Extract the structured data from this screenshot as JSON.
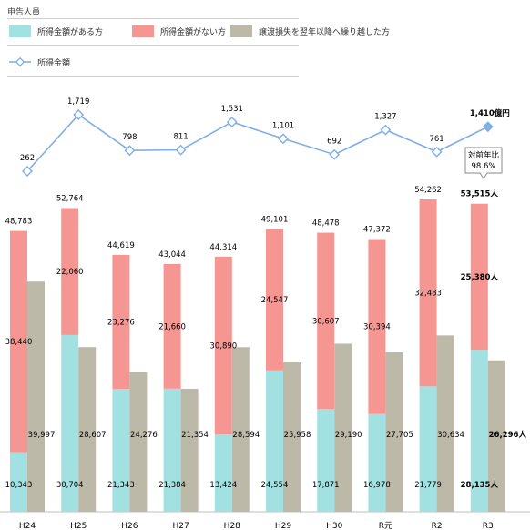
{
  "legend_header": "申告人員",
  "legend": {
    "items": [
      {
        "label": "所得金額がある方",
        "color": "#a2e1e1"
      },
      {
        "label": "所得金額がない方",
        "color": "#f59693"
      },
      {
        "label": "譲渡損失を翌年以降へ繰り越した方",
        "color": "#bdb9a9"
      }
    ],
    "line_label": "所得金額",
    "line_color": "#7faee6"
  },
  "callout": {
    "line1": "対前年比",
    "line2": "98.6%"
  },
  "chart_data": {
    "type": "bar",
    "categories": [
      "H24",
      "H25",
      "H26",
      "H27",
      "H28",
      "H29",
      "H30",
      "R元",
      "R2",
      "R3"
    ],
    "stacked_series": [
      {
        "name": "所得金額がある方",
        "values": [
          10343,
          30704,
          21343,
          21384,
          13424,
          24554,
          17871,
          16978,
          21779,
          28135
        ]
      },
      {
        "name": "所得金額がない方",
        "values": [
          38440,
          22060,
          23276,
          21660,
          30890,
          24547,
          30607,
          30394,
          32483,
          25380
        ]
      }
    ],
    "totals": [
      48783,
      52764,
      44619,
      43044,
      44314,
      49101,
      48478,
      47372,
      54262,
      53515
    ],
    "side_series": {
      "name": "譲渡損失を翌年以降へ繰り越した方",
      "values": [
        39997,
        28607,
        24276,
        21354,
        28594,
        25958,
        29190,
        27705,
        30634,
        26296
      ]
    },
    "line_series": {
      "name": "所得金額",
      "values": [
        262,
        1719,
        798,
        811,
        1531,
        1101,
        692,
        1327,
        761,
        1410
      ]
    },
    "labels": {
      "bottom": [
        "10,343",
        "30,704",
        "21,343",
        "21,384",
        "13,424",
        "24,554",
        "17,871",
        "16,978",
        "21,779",
        "28,135人"
      ],
      "top": [
        "38,440",
        "22,060",
        "23,276",
        "21,660",
        "30,890",
        "24,547",
        "30,607",
        "30,394",
        "32,483",
        "25,380人"
      ],
      "total": [
        "48,783",
        "52,764",
        "44,619",
        "43,044",
        "44,314",
        "49,101",
        "48,478",
        "47,372",
        "54,262",
        "53,515人"
      ],
      "side": [
        "39,997",
        "28,607",
        "24,276",
        "21,354",
        "28,594",
        "25,958",
        "29,190",
        "27,705",
        "30,634",
        "26,296人"
      ],
      "line": [
        "262",
        "1,719",
        "798",
        "811",
        "1,531",
        "1,101",
        "692",
        "1,327",
        "761",
        "1,410億円"
      ]
    }
  }
}
